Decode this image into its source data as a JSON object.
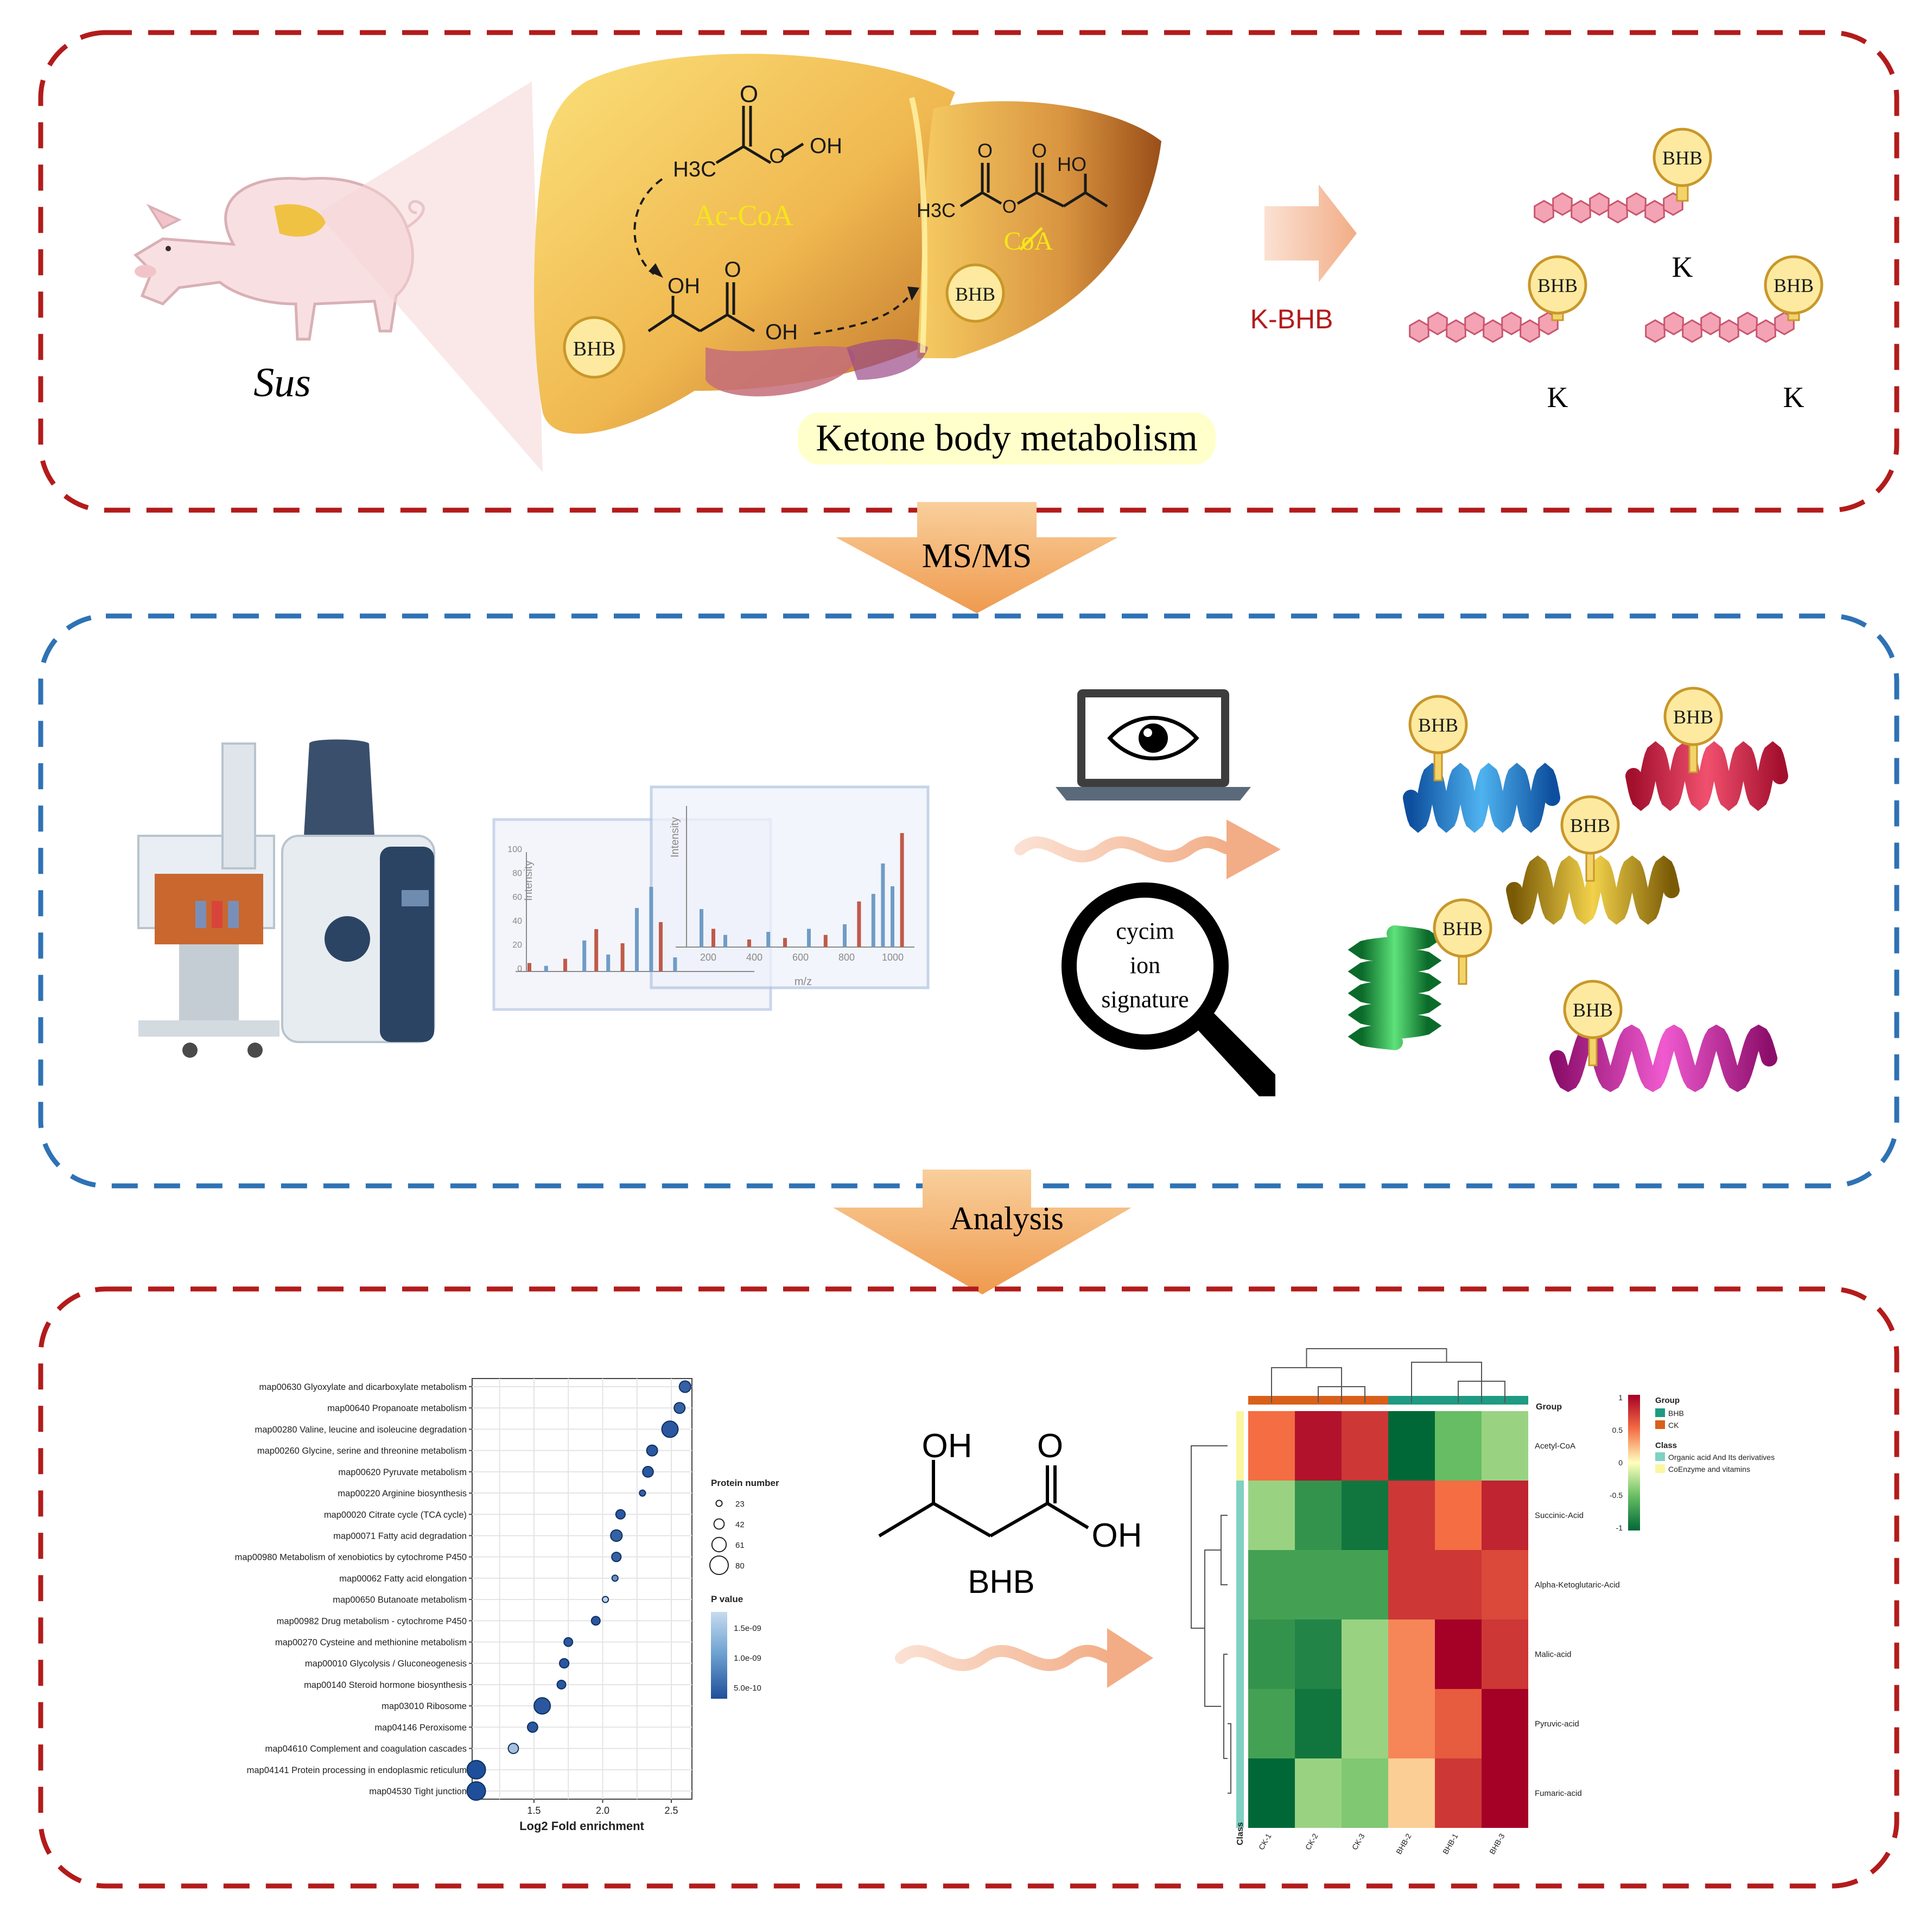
{
  "panel1": {
    "organism_label": "Sus",
    "acetyl_coa_label": "Ac-CoA",
    "bhb_badge": "BHB",
    "coa_label": "CoA",
    "oh_label": "OH",
    "ho_label": "HO",
    "h3c_label": "H3C",
    "metabolism_caption": "Ketone body metabolism",
    "arrow_label": "K-BHB",
    "lysine_label": "K"
  },
  "transition1": {
    "label": "MS/MS"
  },
  "panel2": {
    "spectrum": {
      "y_label": "Intensity",
      "x_label": "m/z",
      "y_ticks": [
        "0",
        "20",
        "40",
        "60",
        "80",
        "100"
      ],
      "x_ticks": [
        "200",
        "400",
        "600",
        "800",
        "1000"
      ]
    },
    "search_label": [
      "cycim",
      "ion",
      "signature"
    ],
    "bhb_badge": "BHB"
  },
  "transition2": {
    "label": "Analysis"
  },
  "panel3": {
    "bubble_chart": {
      "x_label": "Log2 Fold enrichment",
      "x_ticks": [
        "1.5",
        "2.0",
        "2.5"
      ],
      "legend_size_title": "Protein number",
      "legend_sizes": [
        "23",
        "42",
        "61",
        "80"
      ],
      "legend_color_title": "P value",
      "legend_colors": [
        "1.5e-09",
        "1.0e-09",
        "5.0e-10"
      ]
    },
    "bhb_label": "BHB",
    "heatmap": {
      "group_title": "Group",
      "groups": [
        "BHB",
        "CK"
      ],
      "class_title": "Class",
      "classes": [
        "Organic acid And Its derivatives",
        "CoEnzyme and vitamins"
      ],
      "class_axis": "Class",
      "group_axis": "Group",
      "scale_ticks": [
        "1",
        "0.5",
        "0",
        "-0.5",
        "-1"
      ]
    }
  },
  "chart_data": [
    {
      "type": "scatter",
      "title": "",
      "xlabel": "Log2 Fold enrichment",
      "ylabel": "",
      "xlim": [
        1.05,
        2.65
      ],
      "categories": [
        "map00630 Glyoxylate and dicarboxylate metabolism",
        "map00640 Propanoate metabolism",
        "map00280 Valine, leucine and isoleucine degradation",
        "map00260 Glycine, serine and threonine metabolism",
        "map00620 Pyruvate metabolism",
        "map00220 Arginine biosynthesis",
        "map00020 Citrate cycle (TCA cycle)",
        "map00071 Fatty acid degradation",
        "map00980 Metabolism of xenobiotics by cytochrome P450",
        "map00062 Fatty acid elongation",
        "map00650 Butanoate metabolism",
        "map00982 Drug metabolism - cytochrome P450",
        "map00270 Cysteine and methionine metabolism",
        "map00010 Glycolysis / Gluconeogenesis",
        "map00140 Steroid hormone biosynthesis",
        "map03010 Ribosome",
        "map04146 Peroxisome",
        "map04610 Complement and coagulation cascades",
        "map04141 Protein processing in endoplasmic reticulum",
        "map04530 Tight junction"
      ],
      "series": [
        {
          "values": [
            2.6,
            2.56,
            2.49,
            2.36,
            2.33,
            2.29,
            2.13,
            2.1,
            2.1,
            2.09,
            2.02,
            1.95,
            1.75,
            1.72,
            1.7,
            1.56,
            1.49,
            1.35,
            1.08,
            1.08
          ],
          "protein_number": [
            48,
            45,
            70,
            45,
            44,
            23,
            38,
            48,
            38,
            23,
            23,
            35,
            35,
            38,
            35,
            70,
            42,
            42,
            80,
            80
          ],
          "p_value": [
            3e-10,
            3e-10,
            2e-10,
            2e-10,
            2e-10,
            3e-10,
            2e-10,
            3e-10,
            3e-10,
            8e-10,
            1.5e-09,
            2e-10,
            2e-10,
            2e-10,
            2e-10,
            2e-10,
            2e-10,
            1.3e-09,
            1e-10,
            1e-10
          ]
        }
      ],
      "legend": "right"
    },
    {
      "type": "heatmap",
      "title": "",
      "rows": [
        "Acetyl-CoA",
        "Succinic-Acid",
        "Alpha-Ketoglutaric-Acid",
        "Malic-acid",
        "Pyruvic-acid",
        "Fumaric-acid"
      ],
      "columns": [
        "CK-1",
        "CK-2",
        "CK-3",
        "BHB-2",
        "BHB-1",
        "BHB-3"
      ],
      "column_group": [
        "CK",
        "CK",
        "CK",
        "BHB",
        "BHB",
        "BHB"
      ],
      "row_class": [
        "CoEnzyme and vitamins",
        "Organic acid And Its derivatives",
        "Organic acid And Its derivatives",
        "Organic acid And Its derivatives",
        "Organic acid And Its derivatives",
        "Organic acid And Its derivatives"
      ],
      "values": [
        [
          0.6,
          1.1,
          0.9,
          -1.2,
          -0.6,
          -0.4
        ],
        [
          -0.4,
          -0.9,
          -1.1,
          0.9,
          0.6,
          1.0
        ],
        [
          -0.8,
          -0.8,
          -0.8,
          0.9,
          0.9,
          0.8
        ],
        [
          -0.9,
          -1.0,
          -0.4,
          0.5,
          1.2,
          0.9
        ],
        [
          -0.8,
          -1.1,
          -0.4,
          0.5,
          0.7,
          1.4
        ],
        [
          -1.3,
          -0.4,
          -0.5,
          0.2,
          0.9,
          1.3
        ]
      ],
      "scale_range": [
        -1.2,
        1.2
      ],
      "legend": "right"
    }
  ]
}
